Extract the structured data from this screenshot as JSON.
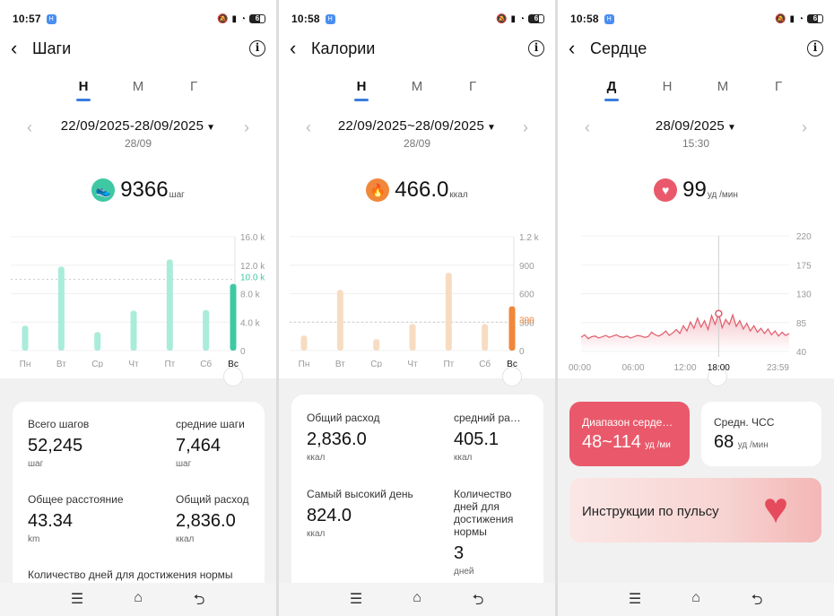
{
  "steps_screen": {
    "status": {
      "time": "10:57"
    },
    "title": "Шаги",
    "tabs": [
      "Н",
      "М",
      "Г"
    ],
    "date_range": "22/09/2025-28/09/2025",
    "date_sub": "28/09",
    "metric": {
      "value": "9366",
      "unit": "шаг",
      "icon": "shoe-icon",
      "color": "#3fc8a4"
    },
    "chart_data": {
      "type": "bar",
      "categories": [
        "Пн",
        "Вт",
        "Ср",
        "Чт",
        "Пт",
        "Сб",
        "Вс"
      ],
      "values": [
        3500,
        11800,
        2600,
        5600,
        12800,
        5700,
        9366
      ],
      "ylim": [
        0,
        16000
      ],
      "yticks": [
        "16.0 k",
        "12.0 k",
        "8.0 k",
        "4.0 k",
        "0"
      ],
      "goal_label": "10.0 k",
      "goal": 10000,
      "colors": {
        "bar": "#a9ecd9",
        "selected": "#3fc8a4"
      }
    },
    "stats": [
      {
        "label": "Всего шагов",
        "value": "52,245",
        "unit": "шаг"
      },
      {
        "label": "средние шаги",
        "value": "7,464",
        "unit": "шаг"
      },
      {
        "label": "Общее расстояние",
        "value": "43.34",
        "unit": "km"
      },
      {
        "label": "Общий расход",
        "value": "2,836.0",
        "unit": "ккал"
      }
    ],
    "footer_label": "Количество дней для достижения нормы"
  },
  "calories_screen": {
    "status": {
      "time": "10:58"
    },
    "title": "Калории",
    "tabs": [
      "Н",
      "М",
      "Г"
    ],
    "date_range": "22/09/2025~28/09/2025",
    "date_sub": "28/09",
    "metric": {
      "value": "466.0",
      "unit": "ккал",
      "icon": "flame-icon",
      "color": "#f0873a"
    },
    "chart_data": {
      "type": "bar",
      "categories": [
        "Пн",
        "Вт",
        "Ср",
        "Чт",
        "Пт",
        "Сб",
        "Вс"
      ],
      "values": [
        160,
        640,
        120,
        280,
        820,
        280,
        466
      ],
      "ylim": [
        0,
        1200
      ],
      "yticks": [
        "1.2 k",
        "900",
        "600",
        "300",
        "0"
      ],
      "goal_label": "300",
      "goal": 300,
      "colors": {
        "bar": "#f7dcc2",
        "selected": "#f0873a"
      }
    },
    "stats": [
      {
        "label": "Общий расход",
        "value": "2,836.0",
        "unit": "ккал"
      },
      {
        "label": "средний ра…",
        "value": "405.1",
        "unit": "ккал"
      },
      {
        "label": "Самый высокий день",
        "value": "824.0",
        "unit": "ккал"
      },
      {
        "label": "Количество дней для достижения нормы",
        "value": "3",
        "unit": "дней"
      }
    ]
  },
  "heart_screen": {
    "status": {
      "time": "10:58"
    },
    "title": "Сердце",
    "tabs": [
      "Д",
      "Н",
      "М",
      "Г"
    ],
    "date_range": "28/09/2025",
    "date_sub": "15:30",
    "metric": {
      "value": "99",
      "unit": "уд /мин",
      "icon": "heart-icon",
      "color": "#e9596b"
    },
    "chart_data": {
      "type": "line",
      "yticks": [
        "220",
        "175",
        "130",
        "85",
        "40"
      ],
      "ylim": [
        40,
        220
      ],
      "xticks": [
        "00:00",
        "06:00",
        "12:00",
        "18:00",
        "23:59"
      ],
      "selected_x": "18:00",
      "color": "#e25b6b"
    },
    "range_card": {
      "label": "Диапазон серде…",
      "value": "48~114",
      "unit": "уд /ми"
    },
    "avg_card": {
      "label": "Средн. ЧСС",
      "value": "68",
      "unit": "уд /мин"
    },
    "instructions": "Инструкции по пульсу"
  },
  "nav": {
    "menu_icon": "menu-icon",
    "home_icon": "home-icon",
    "back_icon": "back-icon"
  }
}
